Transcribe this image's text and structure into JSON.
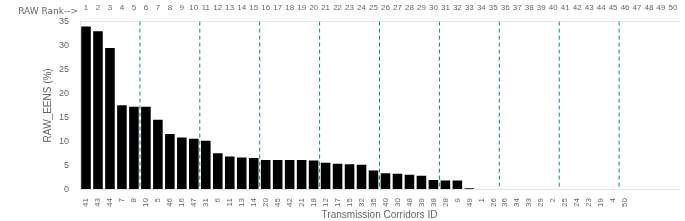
{
  "chart_data": {
    "type": "bar",
    "xlabel": "Transmission Corridors ID",
    "ylabel": "RAW_EENS (%)",
    "x2label": "RAW Rank-->",
    "categories": [
      "41",
      "43",
      "44",
      "7",
      "8",
      "10",
      "5",
      "46",
      "16",
      "47",
      "31",
      "6",
      "11",
      "13",
      "14",
      "20",
      "45",
      "42",
      "21",
      "18",
      "12",
      "17",
      "15",
      "32",
      "35",
      "40",
      "30",
      "48",
      "39",
      "38",
      "28",
      "9",
      "49",
      "1",
      "26",
      "36",
      "34",
      "33",
      "29",
      "2",
      "25",
      "24",
      "23",
      "19",
      "4",
      "50",
      null,
      null,
      null,
      null
    ],
    "x2_categories": [
      "1",
      "2",
      "3",
      "4",
      "5",
      "6",
      "7",
      "8",
      "9",
      "10",
      "11",
      "12",
      "13",
      "14",
      "15",
      "16",
      "17",
      "18",
      "19",
      "20",
      "21",
      "22",
      "23",
      "24",
      "25",
      "26",
      "27",
      "28",
      "29",
      "30",
      "31",
      "32",
      "33",
      "34",
      "35",
      "36",
      "37",
      "38",
      "39",
      "40",
      "41",
      "42",
      "43",
      "44",
      "45",
      "46",
      "47",
      "48",
      "49",
      "50"
    ],
    "values": [
      34,
      33,
      29.5,
      17.5,
      17.2,
      17.2,
      14.5,
      11.5,
      10.8,
      10.5,
      10.1,
      7.5,
      6.8,
      6.6,
      6.5,
      6.1,
      6.1,
      6.1,
      6.1,
      6.0,
      5.5,
      5.3,
      5.2,
      5.1,
      3.9,
      3.3,
      3.2,
      3.0,
      2.8,
      1.9,
      1.8,
      1.8,
      0.2,
      0,
      0,
      0,
      0,
      0,
      0,
      0,
      0,
      0,
      0,
      0,
      0,
      0,
      0,
      0,
      0,
      0
    ],
    "color": "#000000",
    "vlines": {
      "ranks": [
        6,
        11,
        16,
        21,
        26,
        31,
        36,
        41,
        46
      ],
      "color": "#008B8B",
      "line_style": "dashed"
    },
    "ylim": [
      0,
      35
    ],
    "yticks": [
      0,
      5,
      10,
      15,
      20,
      25,
      30,
      35
    ],
    "grid": false
  }
}
